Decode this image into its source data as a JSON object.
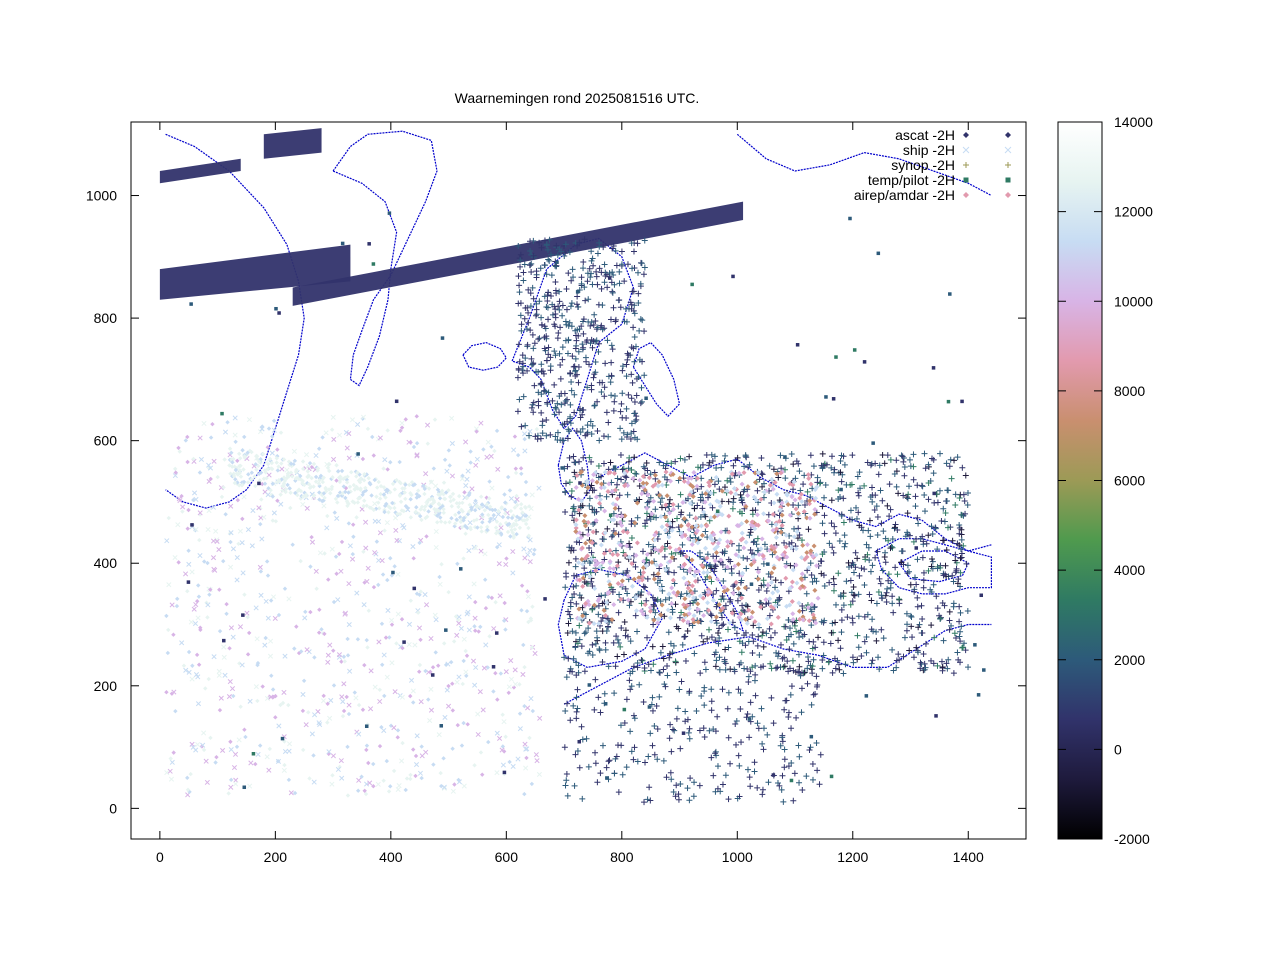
{
  "chart_data": {
    "type": "scatter",
    "title": "Waarnemingen rond 2025081516 UTC.",
    "xlabel": "",
    "ylabel": "",
    "xlim": [
      -50,
      1500
    ],
    "ylim": [
      -50,
      1120
    ],
    "xticks": [
      "0",
      "200",
      "400",
      "600",
      "800",
      "1000",
      "1200",
      "1400"
    ],
    "xtick_values": [
      0,
      200,
      400,
      600,
      800,
      1000,
      1200,
      1400
    ],
    "yticks": [
      "0",
      "200",
      "400",
      "600",
      "800",
      "1000"
    ],
    "ytick_values": [
      0,
      200,
      400,
      600,
      800,
      1000
    ],
    "grid": false,
    "legend_position": "top-right",
    "colorbar": {
      "min": -2000,
      "max": 14000,
      "ticks": [
        "14000",
        "12000",
        "10000",
        "8000",
        "6000",
        "4000",
        "2000",
        "0",
        "-2000"
      ],
      "tick_values": [
        14000,
        12000,
        10000,
        8000,
        6000,
        4000,
        2000,
        0,
        -2000
      ],
      "stops": [
        "#000000",
        "#1e1a3c",
        "#31336b",
        "#2d5a7a",
        "#2f7a63",
        "#4f9a4e",
        "#9c9a56",
        "#c98f6f",
        "#e29aae",
        "#d8b4e6",
        "#c7dcf3",
        "#e7f4f1",
        "#ffffff"
      ]
    },
    "series": [
      {
        "name": "ascat -2H",
        "marker": "diamond",
        "color": "#31336b"
      },
      {
        "name": "ship -2H",
        "marker": "cross",
        "color": "#c7dcf3"
      },
      {
        "name": "synop -2H",
        "marker": "plus",
        "color": "#9c9a56"
      },
      {
        "name": "temp/pilot -2H",
        "marker": "square",
        "color": "#2f7a63"
      },
      {
        "name": "airep/amdar -2H",
        "marker": "diamond",
        "color": "#e29aae"
      }
    ],
    "coastline_color": "#0000cc"
  }
}
